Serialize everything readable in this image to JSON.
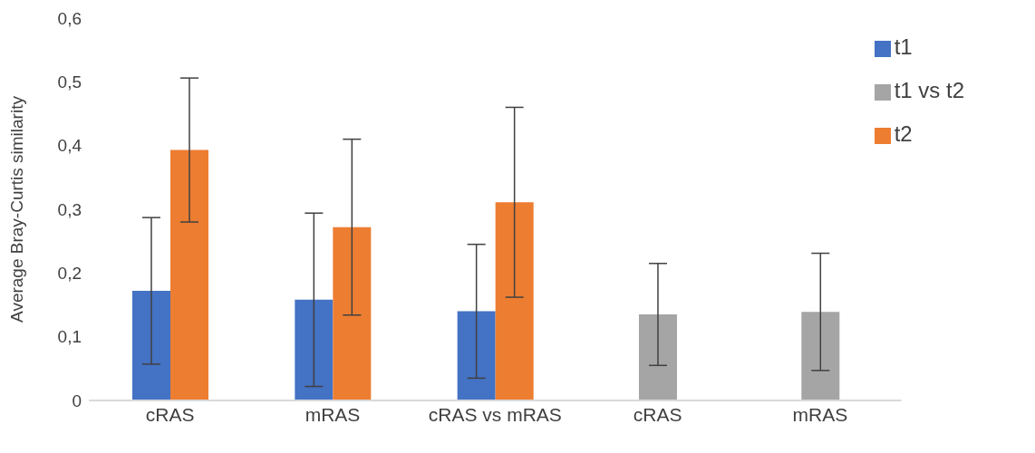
{
  "chart_data": {
    "type": "bar",
    "ylabel": "Average Bray-Curtis similarity",
    "categories": [
      "cRAS",
      "mRAS",
      "cRAS vs mRAS",
      "cRAS",
      "mRAS"
    ],
    "series": [
      {
        "name": "t1",
        "color": "#4472c4",
        "values": [
          0.172,
          0.158,
          0.14,
          null,
          null
        ],
        "errors": [
          0.115,
          0.136,
          0.105,
          null,
          null
        ]
      },
      {
        "name": "t2",
        "color": "#ed7d31",
        "values": [
          0.393,
          0.272,
          0.311,
          null,
          null
        ],
        "errors": [
          0.113,
          0.138,
          0.149,
          null,
          null
        ]
      },
      {
        "name": "t1 vs t2",
        "color": "#a5a5a5",
        "values": [
          null,
          null,
          null,
          0.135,
          0.139
        ],
        "errors": [
          null,
          null,
          null,
          0.08,
          0.092
        ]
      }
    ],
    "ylim": [
      0,
      0.6
    ],
    "yticks": [
      {
        "value": 0,
        "label": "0"
      },
      {
        "value": 0.1,
        "label": "0,1"
      },
      {
        "value": 0.2,
        "label": "0,2"
      },
      {
        "value": 0.3,
        "label": "0,3"
      },
      {
        "value": 0.4,
        "label": "0,4"
      },
      {
        "value": 0.5,
        "label": "0,5"
      },
      {
        "value": 0.6,
        "label": "0,6"
      }
    ],
    "grid": false,
    "legend": "top right"
  }
}
